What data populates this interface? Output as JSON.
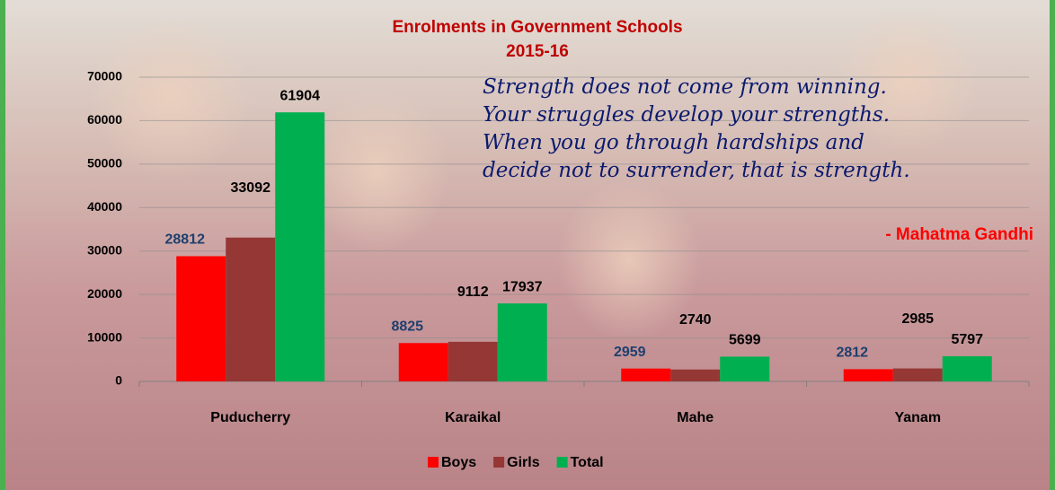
{
  "chart_data": {
    "type": "bar",
    "title": "Enrolments in Government Schools",
    "subtitle": "2015-16",
    "categories": [
      "Puducherry",
      "Karaikal",
      "Mahe",
      "Yanam"
    ],
    "series": [
      {
        "name": "Boys",
        "color": "#ff0000",
        "values": [
          28812,
          8825,
          2959,
          2812
        ]
      },
      {
        "name": "Girls",
        "color": "#953735",
        "values": [
          33092,
          9112,
          2740,
          2985
        ]
      },
      {
        "name": "Total",
        "color": "#00b050",
        "values": [
          61904,
          17937,
          5699,
          5797
        ]
      }
    ],
    "ylim": [
      0,
      70000
    ],
    "yticks": [
      0,
      10000,
      20000,
      30000,
      40000,
      50000,
      60000,
      70000
    ],
    "grid": true,
    "legend": "bottom",
    "annotations": [
      "Strength does not come from winning.",
      "Your struggles develop your strengths.",
      "When you go through hardships and",
      "decide not to surrender, that is strength."
    ],
    "attribution": "- Mahatma Gandhi"
  }
}
